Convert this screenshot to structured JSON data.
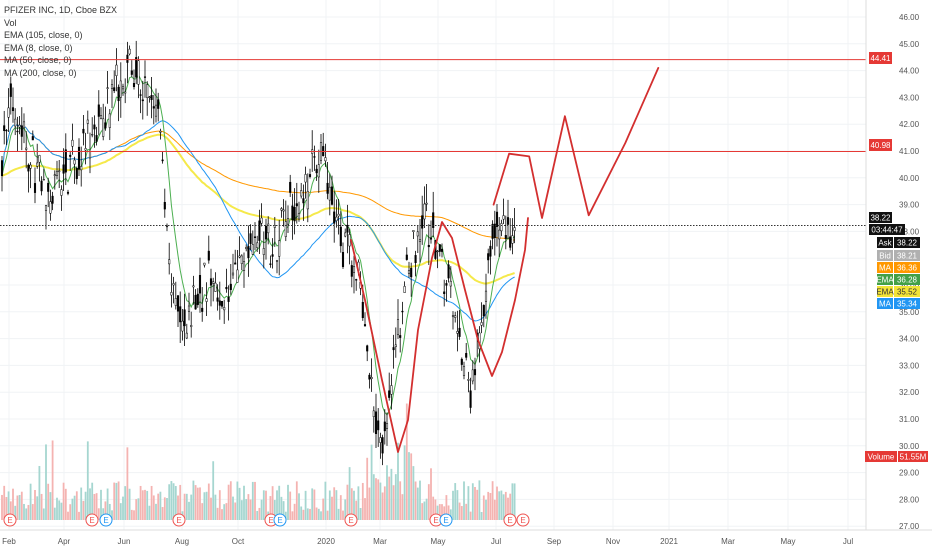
{
  "legend": {
    "title": "PFIZER INC, 1D, Cboe BZX",
    "vol": "Vol",
    "ema105": "EMA (105, close, 0)",
    "ema8": "EMA (8, close, 0)",
    "ma50": "MA (50, close, 0)",
    "ma200": "MA (200, close, 0)"
  },
  "price_axis": {
    "ticks": [
      "46.00",
      "45.00",
      "44.00",
      "43.00",
      "42.00",
      "41.00",
      "40.00",
      "39.00",
      "38.00",
      "37.00",
      "36.00",
      "35.00",
      "34.00",
      "33.00",
      "32.00",
      "31.00",
      "30.00",
      "29.00",
      "28.00",
      "27.00"
    ]
  },
  "time_axis": {
    "labels": [
      "Feb",
      "Apr",
      "Jun",
      "Aug",
      "Oct",
      "2020",
      "Mar",
      "May",
      "Jul",
      "Sep",
      "Nov",
      "2021",
      "Mar",
      "May",
      "Jul"
    ]
  },
  "tags": {
    "level_high": "44.41",
    "level_mid": "40.98",
    "last": "38.22",
    "countdown": "03:44:47",
    "ask_label": "Ask",
    "ask_value": "38.22",
    "bid_label": "Bid",
    "bid_value": "38.21",
    "ma_label": "MA",
    "ma200_value": "36.36",
    "ema_label": "EMA",
    "ema8_value": "36.28",
    "ema105_value": "35.52",
    "ma50_value": "35.34",
    "volume_label": "Volume",
    "volume_value": "51.55M"
  },
  "events": {
    "marker": "E"
  },
  "colors": {
    "up": "#26a69a",
    "down": "#ef5350",
    "candle": "#000000",
    "ma200": "#ff9800",
    "ema8": "#4caf50",
    "ema105": "#f5e94a",
    "ma50": "#2196f3",
    "drawing": "#d32f2f",
    "level": "#e53935"
  },
  "chart_data": {
    "type": "candlestick",
    "symbol": "PFIZER INC",
    "interval": "1D",
    "exchange": "Cboe BZX",
    "y_range": [
      26.5,
      46.3
    ],
    "horizontal_levels": [
      44.41,
      40.98,
      38.22
    ],
    "last_price": 38.22,
    "indicators": {
      "EMA_8": 36.28,
      "EMA_105": 35.52,
      "MA_50": 35.34,
      "MA_200": 36.36,
      "Ask": 38.22,
      "Bid": 38.21,
      "Volume": "51.55M"
    },
    "price_path": [
      [
        "2019-01-28",
        40.0
      ],
      [
        "2019-02-15",
        43.0
      ],
      [
        "2019-03-05",
        41.0
      ],
      [
        "2019-03-25",
        38.9
      ],
      [
        "2019-04-10",
        40.3
      ],
      [
        "2019-05-01",
        40.8
      ],
      [
        "2019-05-20",
        41.9
      ],
      [
        "2019-06-05",
        43.2
      ],
      [
        "2019-06-20",
        44.4
      ],
      [
        "2019-07-10",
        42.9
      ],
      [
        "2019-07-25",
        42.4
      ],
      [
        "2019-08-05",
        36.3
      ],
      [
        "2019-08-20",
        34.3
      ],
      [
        "2019-09-05",
        35.9
      ],
      [
        "2019-09-20",
        36.3
      ],
      [
        "2019-10-05",
        35.3
      ],
      [
        "2019-10-20",
        36.6
      ],
      [
        "2019-11-05",
        38.2
      ],
      [
        "2019-11-25",
        37.4
      ],
      [
        "2019-12-10",
        38.9
      ],
      [
        "2019-12-28",
        39.4
      ],
      [
        "2020-01-10",
        40.3
      ],
      [
        "2020-01-20",
        40.8
      ],
      [
        "2020-02-01",
        38.4
      ],
      [
        "2020-02-15",
        37.4
      ],
      [
        "2020-03-01",
        35.8
      ],
      [
        "2020-03-12",
        32.3
      ],
      [
        "2020-03-23",
        29.2
      ],
      [
        "2020-04-05",
        32.8
      ],
      [
        "2020-04-20",
        36.6
      ],
      [
        "2020-05-05",
        38.4
      ],
      [
        "2020-05-20",
        37.7
      ],
      [
        "2020-06-05",
        36.2
      ],
      [
        "2020-06-20",
        33.3
      ],
      [
        "2020-07-01",
        32.3
      ],
      [
        "2020-07-10",
        34.4
      ],
      [
        "2020-07-22",
        38.0
      ]
    ],
    "projection_path": [
      [
        "2020-07-24",
        39.0
      ],
      [
        "2020-08-10",
        40.9
      ],
      [
        "2020-09-01",
        40.8
      ],
      [
        "2020-09-15",
        38.5
      ],
      [
        "2020-10-10",
        42.3
      ],
      [
        "2020-11-05",
        38.6
      ],
      [
        "2020-12-15",
        41.3
      ],
      [
        "2021-01-20",
        44.1
      ]
    ]
  }
}
